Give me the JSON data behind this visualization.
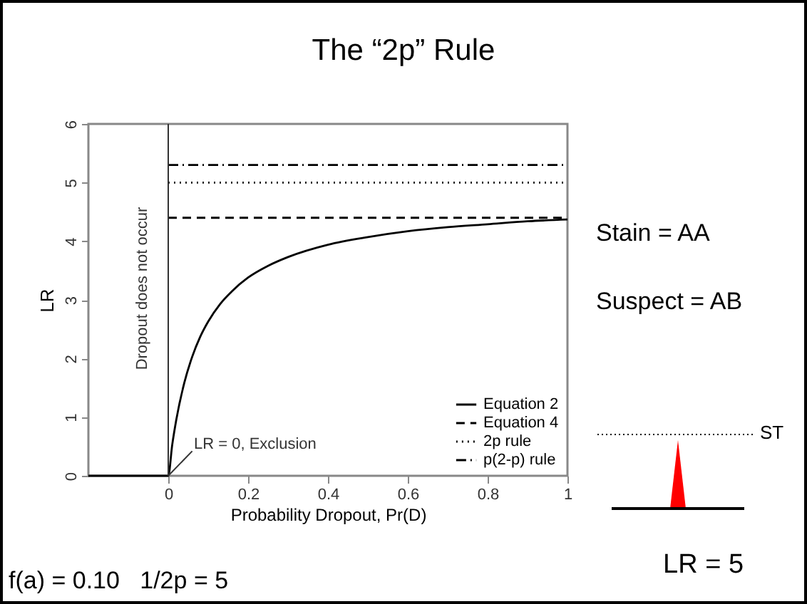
{
  "chart_data": {
    "type": "line",
    "title": "The “2p” Rule",
    "xlabel": "Probability Dropout, Pr(D)",
    "ylabel": "LR",
    "xlim": [
      -0.2,
      1
    ],
    "xticks": [
      0,
      0.2,
      0.4,
      0.6,
      0.8,
      1
    ],
    "ylim": [
      0,
      6
    ],
    "yticks": [
      0,
      1,
      2,
      3,
      4,
      5,
      6
    ],
    "grid": false,
    "legend": "bottom right",
    "marker": "none",
    "series": [
      {
        "name": "Equation 2",
        "color": "#000000",
        "line_style": "solid",
        "x": [
          -0.2,
          0,
          0.01,
          0.02,
          0.04,
          0.06,
          0.08,
          0.1,
          0.13,
          0.16,
          0.2,
          0.25,
          0.3,
          0.4,
          0.5,
          0.6,
          0.7,
          0.8,
          0.9,
          1
        ],
        "values": [
          0,
          0,
          0.53,
          0.95,
          1.58,
          2.03,
          2.37,
          2.63,
          2.93,
          3.15,
          3.38,
          3.58,
          3.73,
          3.94,
          4.07,
          4.17,
          4.24,
          4.29,
          4.34,
          4.37
        ]
      },
      {
        "name": "Equation 4",
        "color": "#000000",
        "line_style": "dashed",
        "x": [
          0,
          1
        ],
        "values": [
          4.4,
          4.4
        ]
      },
      {
        "name": "2p rule",
        "color": "#000000",
        "line_style": "dotted",
        "x": [
          0,
          1
        ],
        "values": [
          5,
          5
        ]
      },
      {
        "name": "p(2-p) rule",
        "color": "#000000",
        "line_style": "dashdot",
        "x": [
          0,
          1
        ],
        "values": [
          5.3,
          5.3
        ]
      }
    ],
    "ref_lines": [
      {
        "axis": "x",
        "value": 0,
        "label": "Dropout does not occur"
      }
    ],
    "annotations": [
      {
        "text": "LR = 0, Exclusion",
        "x": 0,
        "y": 0
      },
      "Stain = AA",
      "Suspect = AB",
      "ST",
      "LR = 5",
      "f(a) = 0.10   1/2p = 5"
    ]
  }
}
